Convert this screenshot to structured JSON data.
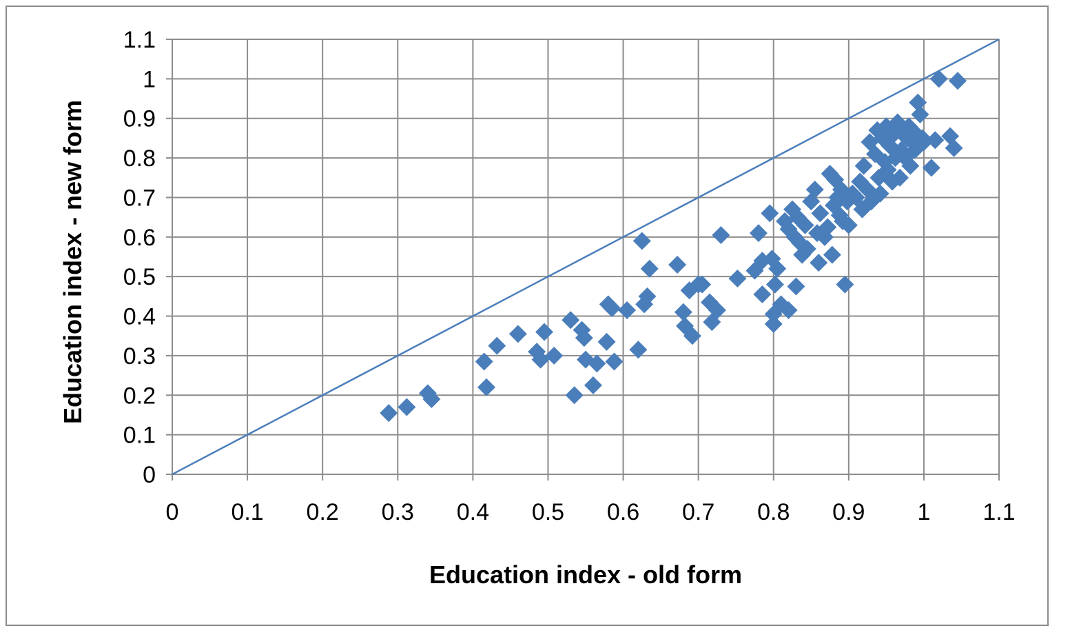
{
  "chart_data": {
    "type": "scatter",
    "title": "",
    "xlabel": "Education index - old form",
    "ylabel": "Education index - new form",
    "xlim": [
      0,
      1.1
    ],
    "ylim": [
      0,
      1.1
    ],
    "x_ticks": [
      "0",
      "0.1",
      "0.2",
      "0.3",
      "0.4",
      "0.5",
      "0.6",
      "0.7",
      "0.8",
      "0.9",
      "1",
      "1.1"
    ],
    "y_ticks": [
      "0",
      "0.1",
      "0.2",
      "0.3",
      "0.4",
      "0.5",
      "0.6",
      "0.7",
      "0.8",
      "0.9",
      "1",
      "1.1"
    ],
    "grid": true,
    "legend": "none",
    "marker": "diamond",
    "marker_color": "#4a7ebb",
    "reference_line": {
      "from": [
        0,
        0
      ],
      "to": [
        1.1,
        1.1
      ],
      "color": "#4a7ebb"
    },
    "points": [
      [
        0.288,
        0.155
      ],
      [
        0.312,
        0.17
      ],
      [
        0.34,
        0.205
      ],
      [
        0.345,
        0.19
      ],
      [
        0.415,
        0.285
      ],
      [
        0.418,
        0.22
      ],
      [
        0.432,
        0.325
      ],
      [
        0.46,
        0.355
      ],
      [
        0.485,
        0.31
      ],
      [
        0.49,
        0.29
      ],
      [
        0.495,
        0.36
      ],
      [
        0.508,
        0.3
      ],
      [
        0.53,
        0.39
      ],
      [
        0.535,
        0.2
      ],
      [
        0.545,
        0.365
      ],
      [
        0.548,
        0.345
      ],
      [
        0.55,
        0.29
      ],
      [
        0.56,
        0.225
      ],
      [
        0.565,
        0.28
      ],
      [
        0.578,
        0.335
      ],
      [
        0.58,
        0.43
      ],
      [
        0.585,
        0.42
      ],
      [
        0.588,
        0.285
      ],
      [
        0.605,
        0.415
      ],
      [
        0.62,
        0.315
      ],
      [
        0.625,
        0.59
      ],
      [
        0.628,
        0.43
      ],
      [
        0.632,
        0.45
      ],
      [
        0.635,
        0.52
      ],
      [
        0.672,
        0.53
      ],
      [
        0.68,
        0.41
      ],
      [
        0.682,
        0.375
      ],
      [
        0.688,
        0.465
      ],
      [
        0.692,
        0.35
      ],
      [
        0.7,
        0.48
      ],
      [
        0.705,
        0.48
      ],
      [
        0.715,
        0.435
      ],
      [
        0.718,
        0.385
      ],
      [
        0.725,
        0.415
      ],
      [
        0.73,
        0.605
      ],
      [
        0.752,
        0.495
      ],
      [
        0.775,
        0.515
      ],
      [
        0.78,
        0.61
      ],
      [
        0.785,
        0.54
      ],
      [
        0.785,
        0.455
      ],
      [
        0.795,
        0.66
      ],
      [
        0.798,
        0.545
      ],
      [
        0.8,
        0.38
      ],
      [
        0.8,
        0.405
      ],
      [
        0.802,
        0.48
      ],
      [
        0.805,
        0.52
      ],
      [
        0.81,
        0.43
      ],
      [
        0.815,
        0.64
      ],
      [
        0.82,
        0.62
      ],
      [
        0.82,
        0.415
      ],
      [
        0.825,
        0.67
      ],
      [
        0.828,
        0.6
      ],
      [
        0.83,
        0.475
      ],
      [
        0.832,
        0.65
      ],
      [
        0.835,
        0.585
      ],
      [
        0.838,
        0.555
      ],
      [
        0.842,
        0.63
      ],
      [
        0.845,
        0.57
      ],
      [
        0.85,
        0.69
      ],
      [
        0.855,
        0.72
      ],
      [
        0.858,
        0.61
      ],
      [
        0.86,
        0.535
      ],
      [
        0.862,
        0.66
      ],
      [
        0.868,
        0.6
      ],
      [
        0.872,
        0.625
      ],
      [
        0.875,
        0.76
      ],
      [
        0.878,
        0.555
      ],
      [
        0.88,
        0.68
      ],
      [
        0.882,
        0.745
      ],
      [
        0.885,
        0.7
      ],
      [
        0.888,
        0.655
      ],
      [
        0.89,
        0.72
      ],
      [
        0.892,
        0.64
      ],
      [
        0.895,
        0.48
      ],
      [
        0.898,
        0.69
      ],
      [
        0.9,
        0.63
      ],
      [
        0.905,
        0.71
      ],
      [
        0.91,
        0.7
      ],
      [
        0.915,
        0.74
      ],
      [
        0.918,
        0.67
      ],
      [
        0.92,
        0.78
      ],
      [
        0.925,
        0.72
      ],
      [
        0.928,
        0.84
      ],
      [
        0.93,
        0.69
      ],
      [
        0.935,
        0.81
      ],
      [
        0.938,
        0.87
      ],
      [
        0.94,
        0.75
      ],
      [
        0.942,
        0.71
      ],
      [
        0.945,
        0.85
      ],
      [
        0.948,
        0.79
      ],
      [
        0.95,
        0.88
      ],
      [
        0.952,
        0.77
      ],
      [
        0.955,
        0.83
      ],
      [
        0.958,
        0.74
      ],
      [
        0.96,
        0.86
      ],
      [
        0.962,
        0.8
      ],
      [
        0.965,
        0.89
      ],
      [
        0.968,
        0.75
      ],
      [
        0.97,
        0.82
      ],
      [
        0.972,
        0.86
      ],
      [
        0.975,
        0.8
      ],
      [
        0.978,
        0.85
      ],
      [
        0.98,
        0.88
      ],
      [
        0.982,
        0.78
      ],
      [
        0.985,
        0.84
      ],
      [
        0.988,
        0.82
      ],
      [
        0.99,
        0.86
      ],
      [
        0.992,
        0.94
      ],
      [
        0.995,
        0.91
      ],
      [
        0.998,
        0.85
      ],
      [
        1.0,
        0.84
      ],
      [
        1.01,
        0.775
      ],
      [
        1.015,
        0.845
      ],
      [
        1.02,
        1.0
      ],
      [
        1.035,
        0.855
      ],
      [
        1.04,
        0.825
      ],
      [
        1.045,
        0.995
      ]
    ]
  }
}
